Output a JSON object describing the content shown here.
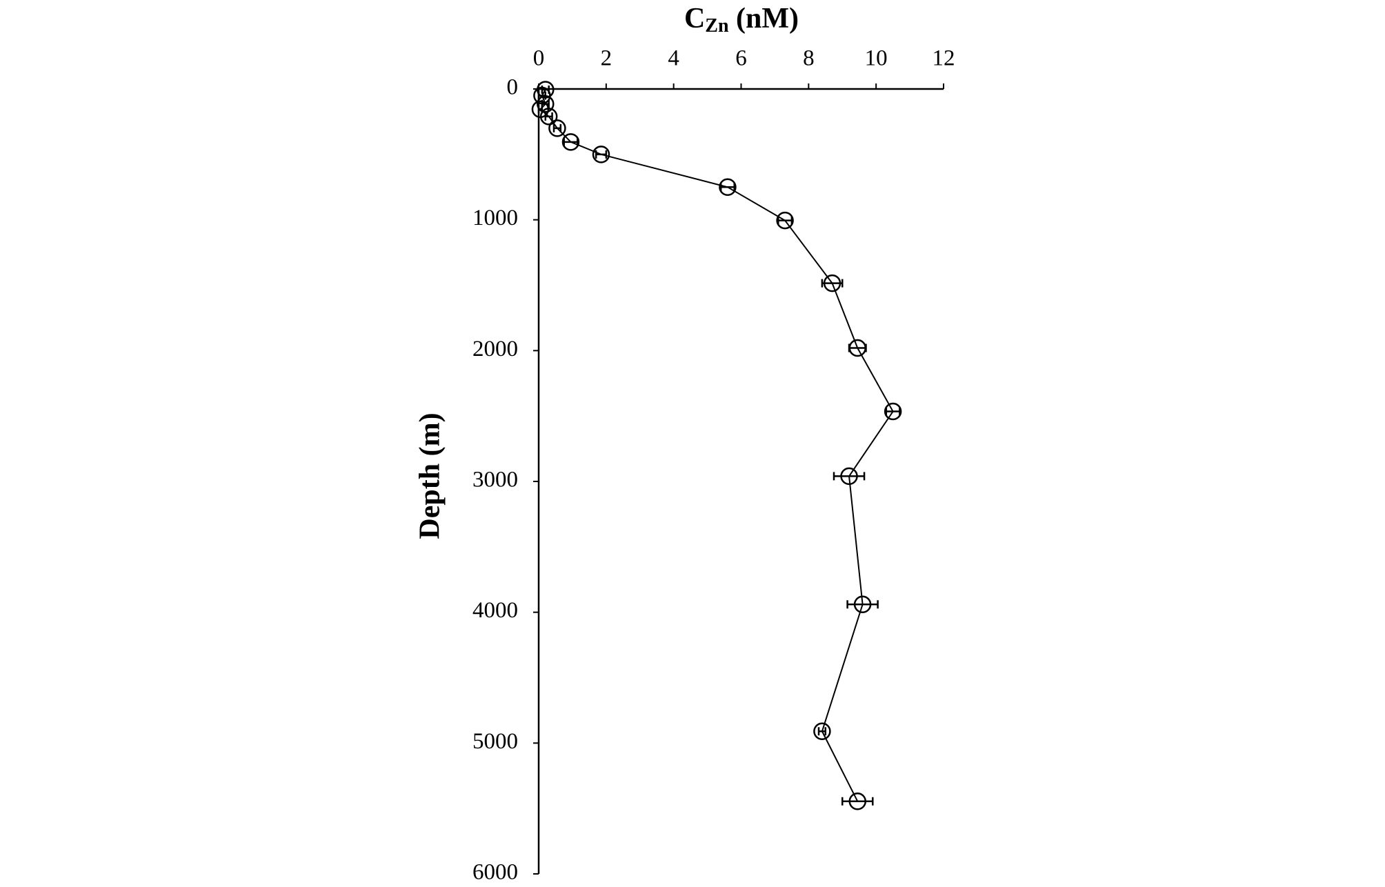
{
  "chart_data": {
    "type": "line",
    "xlabel": [
      "C",
      "Zn",
      " (nM)"
    ],
    "ylabel": "Depth (m)",
    "xlim": [
      0,
      12
    ],
    "xticks": [
      0,
      2,
      4,
      6,
      8,
      10,
      12
    ],
    "ylim": [
      0,
      6000
    ],
    "yticks": [
      0,
      1000,
      2000,
      3000,
      4000,
      5000,
      6000
    ],
    "y_inverted": true,
    "x_axis_position": "top",
    "grid": false,
    "color": "#000000",
    "series": [
      {
        "name": null,
        "x": [
          0.2,
          0.1,
          0.2,
          0.05,
          0.3,
          0.55,
          0.95,
          1.85,
          5.6,
          7.3,
          8.7,
          9.45,
          10.5,
          9.2,
          9.6,
          8.4,
          9.45
        ],
        "y": [
          5,
          50,
          115,
          155,
          210,
          300,
          405,
          500,
          750,
          1005,
          1485,
          1980,
          2465,
          2960,
          3940,
          4910,
          5445
        ],
        "xerr": [
          0.1,
          0.1,
          0.1,
          0.05,
          0.1,
          0.1,
          0.2,
          0.15,
          0.2,
          0.2,
          0.3,
          0.25,
          0.2,
          0.45,
          0.45,
          0.1,
          0.45
        ]
      }
    ]
  }
}
